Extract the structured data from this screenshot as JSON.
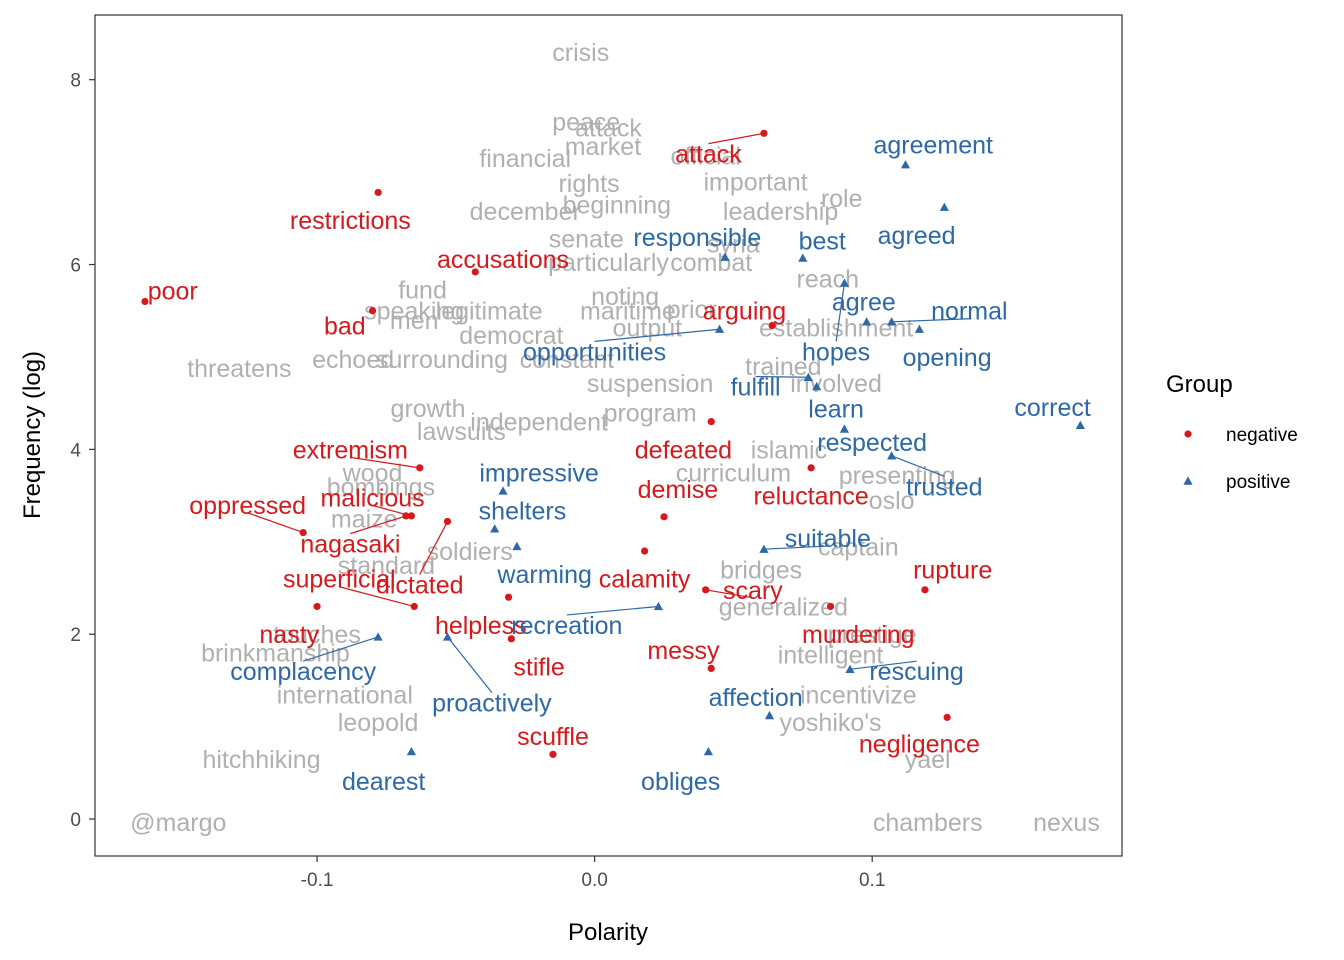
{
  "chart_data": {
    "type": "scatter",
    "xlabel": "Polarity",
    "ylabel": "Frequency (log)",
    "xlim": [
      -0.18,
      0.19
    ],
    "ylim": [
      -0.4,
      8.7
    ],
    "x_ticks": [
      -0.1,
      0.0,
      0.1
    ],
    "x_tick_labels": [
      "-0.1",
      "0.0",
      "0.1"
    ],
    "y_ticks": [
      0,
      2,
      4,
      6,
      8
    ],
    "y_tick_labels": [
      "0",
      "2",
      "4",
      "6",
      "8"
    ],
    "grid": false,
    "legend": {
      "title": "Group",
      "position": "right",
      "entries": [
        {
          "label": "negative",
          "shape": "circle",
          "color": "#d7191c"
        },
        {
          "label": "positive",
          "shape": "triangle",
          "color": "#2c69a6"
        }
      ]
    },
    "colors": {
      "negative": "#d7191c",
      "positive": "#2c69a6",
      "other": "#b0b0b0"
    },
    "highlighted_points": [
      {
        "word": "restrictions",
        "group": "negative",
        "x": -0.078,
        "y": 6.78,
        "label_x": -0.088,
        "label_y": 6.48
      },
      {
        "word": "poor",
        "group": "negative",
        "x": -0.162,
        "y": 5.6,
        "label_x": -0.152,
        "label_y": 5.72
      },
      {
        "word": "accusations",
        "group": "negative",
        "x": -0.043,
        "y": 5.92,
        "label_x": -0.033,
        "label_y": 6.06
      },
      {
        "word": "bad",
        "group": "negative",
        "x": -0.08,
        "y": 5.5,
        "label_x": -0.09,
        "label_y": 5.34
      },
      {
        "word": "attack",
        "group": "negative",
        "x": 0.061,
        "y": 7.42,
        "label_x": 0.041,
        "label_y": 7.2
      },
      {
        "word": "arguing",
        "group": "negative",
        "x": 0.064,
        "y": 5.34,
        "label_x": 0.054,
        "label_y": 5.5
      },
      {
        "word": "extremism",
        "group": "negative",
        "x": -0.063,
        "y": 3.8,
        "label_x": -0.088,
        "label_y": 4.0
      },
      {
        "word": "defeated",
        "group": "negative",
        "x": 0.042,
        "y": 4.3,
        "label_x": 0.032,
        "label_y": 4.0
      },
      {
        "word": "malicious",
        "group": "negative",
        "x": -0.066,
        "y": 3.28,
        "label_x": -0.08,
        "label_y": 3.48
      },
      {
        "word": "oppressed",
        "group": "negative",
        "x": -0.105,
        "y": 3.1,
        "label_x": -0.125,
        "label_y": 3.4
      },
      {
        "word": "nagasaki",
        "group": "negative",
        "x": -0.068,
        "y": 3.28,
        "label_x": -0.088,
        "label_y": 2.98
      },
      {
        "word": "dictated",
        "group": "negative",
        "x": -0.053,
        "y": 3.22,
        "label_x": -0.063,
        "label_y": 2.54
      },
      {
        "word": "demise",
        "group": "negative",
        "x": 0.025,
        "y": 3.27,
        "label_x": 0.03,
        "label_y": 3.57
      },
      {
        "word": "reluctance",
        "group": "negative",
        "x": 0.078,
        "y": 3.8,
        "label_x": 0.078,
        "label_y": 3.5
      },
      {
        "word": "superficial",
        "group": "negative",
        "x": -0.065,
        "y": 2.3,
        "label_x": -0.092,
        "label_y": 2.6
      },
      {
        "word": "calamity",
        "group": "negative",
        "x": 0.018,
        "y": 2.9,
        "label_x": 0.018,
        "label_y": 2.6
      },
      {
        "word": "scary",
        "group": "negative",
        "x": 0.04,
        "y": 2.48,
        "label_x": 0.057,
        "label_y": 2.48
      },
      {
        "word": "rupture",
        "group": "negative",
        "x": 0.119,
        "y": 2.48,
        "label_x": 0.129,
        "label_y": 2.7
      },
      {
        "word": "nasty",
        "group": "negative",
        "x": -0.1,
        "y": 2.3,
        "label_x": -0.11,
        "label_y": 2.0
      },
      {
        "word": "helpless",
        "group": "negative",
        "x": -0.031,
        "y": 2.4,
        "label_x": -0.041,
        "label_y": 2.1
      },
      {
        "word": "murdering",
        "group": "negative",
        "x": 0.085,
        "y": 2.3,
        "label_x": 0.095,
        "label_y": 2.0
      },
      {
        "word": "messy",
        "group": "negative",
        "x": 0.042,
        "y": 1.63,
        "label_x": 0.032,
        "label_y": 1.83
      },
      {
        "word": "stifle",
        "group": "negative",
        "x": -0.03,
        "y": 1.95,
        "label_x": -0.02,
        "label_y": 1.65
      },
      {
        "word": "scuffle",
        "group": "negative",
        "x": -0.015,
        "y": 0.7,
        "label_x": -0.015,
        "label_y": 0.9
      },
      {
        "word": "negligence",
        "group": "negative",
        "x": 0.127,
        "y": 1.1,
        "label_x": 0.117,
        "label_y": 0.82
      },
      {
        "word": "agreement",
        "group": "positive",
        "x": 0.112,
        "y": 7.08,
        "label_x": 0.122,
        "label_y": 7.3
      },
      {
        "word": "agreed",
        "group": "positive",
        "x": 0.126,
        "y": 6.62,
        "label_x": 0.116,
        "label_y": 6.32
      },
      {
        "word": "responsible",
        "group": "positive",
        "x": 0.047,
        "y": 6.08,
        "label_x": 0.037,
        "label_y": 6.3
      },
      {
        "word": "best",
        "group": "positive",
        "x": 0.075,
        "y": 6.07,
        "label_x": 0.082,
        "label_y": 6.26
      },
      {
        "word": "agree",
        "group": "positive",
        "x": 0.098,
        "y": 5.38,
        "label_x": 0.097,
        "label_y": 5.6
      },
      {
        "word": "normal",
        "group": "positive",
        "x": 0.107,
        "y": 5.38,
        "label_x": 0.135,
        "label_y": 5.5
      },
      {
        "word": "hopes",
        "group": "positive",
        "x": 0.09,
        "y": 5.8,
        "label_x": 0.087,
        "label_y": 5.06
      },
      {
        "word": "opening",
        "group": "positive",
        "x": 0.117,
        "y": 5.3,
        "label_x": 0.127,
        "label_y": 5.0
      },
      {
        "word": "opportunities",
        "group": "positive",
        "x": 0.045,
        "y": 5.3,
        "label_x": 0.0,
        "label_y": 5.06
      },
      {
        "word": "fulfill",
        "group": "positive",
        "x": 0.077,
        "y": 4.78,
        "label_x": 0.058,
        "label_y": 4.68
      },
      {
        "word": "learn",
        "group": "positive",
        "x": 0.08,
        "y": 4.68,
        "label_x": 0.087,
        "label_y": 4.44
      },
      {
        "word": "correct",
        "group": "positive",
        "x": 0.175,
        "y": 4.26,
        "label_x": 0.165,
        "label_y": 4.46
      },
      {
        "word": "respected",
        "group": "positive",
        "x": 0.09,
        "y": 4.22,
        "label_x": 0.1,
        "label_y": 4.08
      },
      {
        "word": "trusted",
        "group": "positive",
        "x": 0.107,
        "y": 3.93,
        "label_x": 0.126,
        "label_y": 3.6
      },
      {
        "word": "impressive",
        "group": "positive",
        "x": -0.033,
        "y": 3.55,
        "label_x": -0.02,
        "label_y": 3.75
      },
      {
        "word": "shelters",
        "group": "positive",
        "x": -0.036,
        "y": 3.14,
        "label_x": -0.026,
        "label_y": 3.34
      },
      {
        "word": "suitable",
        "group": "positive",
        "x": 0.061,
        "y": 2.92,
        "label_x": 0.084,
        "label_y": 3.04
      },
      {
        "word": "warming",
        "group": "positive",
        "x": -0.028,
        "y": 2.95,
        "label_x": -0.018,
        "label_y": 2.65
      },
      {
        "word": "recreation",
        "group": "positive",
        "x": 0.023,
        "y": 2.3,
        "label_x": -0.01,
        "label_y": 2.1
      },
      {
        "word": "complacency",
        "group": "positive",
        "x": -0.078,
        "y": 1.97,
        "label_x": -0.105,
        "label_y": 1.6
      },
      {
        "word": "proactively",
        "group": "positive",
        "x": -0.053,
        "y": 1.97,
        "label_x": -0.037,
        "label_y": 1.26
      },
      {
        "word": "rescuing",
        "group": "positive",
        "x": 0.092,
        "y": 1.62,
        "label_x": 0.116,
        "label_y": 1.6
      },
      {
        "word": "affection",
        "group": "positive",
        "x": 0.063,
        "y": 1.12,
        "label_x": 0.058,
        "label_y": 1.32
      },
      {
        "word": "dearest",
        "group": "positive",
        "x": -0.066,
        "y": 0.73,
        "label_x": -0.076,
        "label_y": 0.41
      },
      {
        "word": "obliges",
        "group": "positive",
        "x": 0.041,
        "y": 0.73,
        "label_x": 0.031,
        "label_y": 0.41
      }
    ],
    "other_words": [
      {
        "word": "crisis",
        "x": -0.005,
        "y": 8.3
      },
      {
        "word": "peace",
        "x": -0.003,
        "y": 7.55
      },
      {
        "word": "attack",
        "x": 0.005,
        "y": 7.48
      },
      {
        "word": "market",
        "x": 0.003,
        "y": 7.28
      },
      {
        "word": "financial",
        "x": -0.025,
        "y": 7.15
      },
      {
        "word": "official",
        "x": 0.04,
        "y": 7.18
      },
      {
        "word": "important",
        "x": 0.058,
        "y": 6.9
      },
      {
        "word": "rights",
        "x": -0.002,
        "y": 6.88
      },
      {
        "word": "beginning",
        "x": 0.008,
        "y": 6.65
      },
      {
        "word": "december",
        "x": -0.025,
        "y": 6.58
      },
      {
        "word": "leadership",
        "x": 0.067,
        "y": 6.58
      },
      {
        "word": "role",
        "x": 0.089,
        "y": 6.72
      },
      {
        "word": "senate",
        "x": -0.003,
        "y": 6.28
      },
      {
        "word": "particularly",
        "x": 0.005,
        "y": 6.03
      },
      {
        "word": "syria",
        "x": 0.05,
        "y": 6.23
      },
      {
        "word": "combat",
        "x": 0.042,
        "y": 6.03
      },
      {
        "word": "reach",
        "x": 0.084,
        "y": 5.85
      },
      {
        "word": "fund",
        "x": -0.062,
        "y": 5.73
      },
      {
        "word": "noting",
        "x": 0.011,
        "y": 5.66
      },
      {
        "word": "speaking",
        "x": -0.065,
        "y": 5.5
      },
      {
        "word": "maritime",
        "x": 0.012,
        "y": 5.5
      },
      {
        "word": "prior",
        "x": 0.035,
        "y": 5.52
      },
      {
        "word": "legitimate",
        "x": -0.038,
        "y": 5.5
      },
      {
        "word": "men",
        "x": -0.065,
        "y": 5.4
      },
      {
        "word": "democrat",
        "x": -0.03,
        "y": 5.24
      },
      {
        "word": "output",
        "x": 0.019,
        "y": 5.32
      },
      {
        "word": "establishment",
        "x": 0.087,
        "y": 5.32
      },
      {
        "word": "echoed",
        "x": -0.087,
        "y": 4.98
      },
      {
        "word": "threatens",
        "x": -0.128,
        "y": 4.88
      },
      {
        "word": "surrounding",
        "x": -0.055,
        "y": 4.98
      },
      {
        "word": "constant",
        "x": -0.01,
        "y": 4.98
      },
      {
        "word": "suspension",
        "x": 0.02,
        "y": 4.72
      },
      {
        "word": "trained",
        "x": 0.068,
        "y": 4.9
      },
      {
        "word": "involved",
        "x": 0.087,
        "y": 4.72
      },
      {
        "word": "growth",
        "x": -0.06,
        "y": 4.45
      },
      {
        "word": "lawsuits",
        "x": -0.048,
        "y": 4.2
      },
      {
        "word": "independent",
        "x": -0.02,
        "y": 4.3
      },
      {
        "word": "program",
        "x": 0.02,
        "y": 4.4
      },
      {
        "word": "islamic",
        "x": 0.07,
        "y": 4.0
      },
      {
        "word": "presenting",
        "x": 0.109,
        "y": 3.72
      },
      {
        "word": "oslo",
        "x": 0.107,
        "y": 3.45
      },
      {
        "word": "wood",
        "x": -0.08,
        "y": 3.75
      },
      {
        "word": "bombings",
        "x": -0.077,
        "y": 3.6
      },
      {
        "word": "maize",
        "x": -0.083,
        "y": 3.25
      },
      {
        "word": "curriculum",
        "x": 0.05,
        "y": 3.75
      },
      {
        "word": "captain",
        "x": 0.095,
        "y": 2.95
      },
      {
        "word": "standard",
        "x": -0.075,
        "y": 2.75
      },
      {
        "word": "soldiers",
        "x": -0.045,
        "y": 2.9
      },
      {
        "word": "bridges",
        "x": 0.06,
        "y": 2.7
      },
      {
        "word": "touches",
        "x": -0.1,
        "y": 2.0
      },
      {
        "word": "brinkmanship",
        "x": -0.115,
        "y": 1.8
      },
      {
        "word": "international",
        "x": -0.09,
        "y": 1.35
      },
      {
        "word": "intelligent",
        "x": 0.085,
        "y": 1.78
      },
      {
        "word": "incentivize",
        "x": 0.095,
        "y": 1.35
      },
      {
        "word": "generalized",
        "x": 0.068,
        "y": 2.3
      },
      {
        "word": "prestige",
        "x": 0.1,
        "y": 2.0
      },
      {
        "word": "leopold",
        "x": -0.078,
        "y": 1.05
      },
      {
        "word": "yoshiko's",
        "x": 0.085,
        "y": 1.05
      },
      {
        "word": "hitchhiking",
        "x": -0.12,
        "y": 0.65
      },
      {
        "word": "yael",
        "x": 0.12,
        "y": 0.65
      },
      {
        "word": "@margo",
        "x": -0.15,
        "y": -0.03
      },
      {
        "word": "nexus",
        "x": 0.17,
        "y": -0.03
      },
      {
        "word": "chambers",
        "x": 0.12,
        "y": -0.03
      }
    ]
  }
}
